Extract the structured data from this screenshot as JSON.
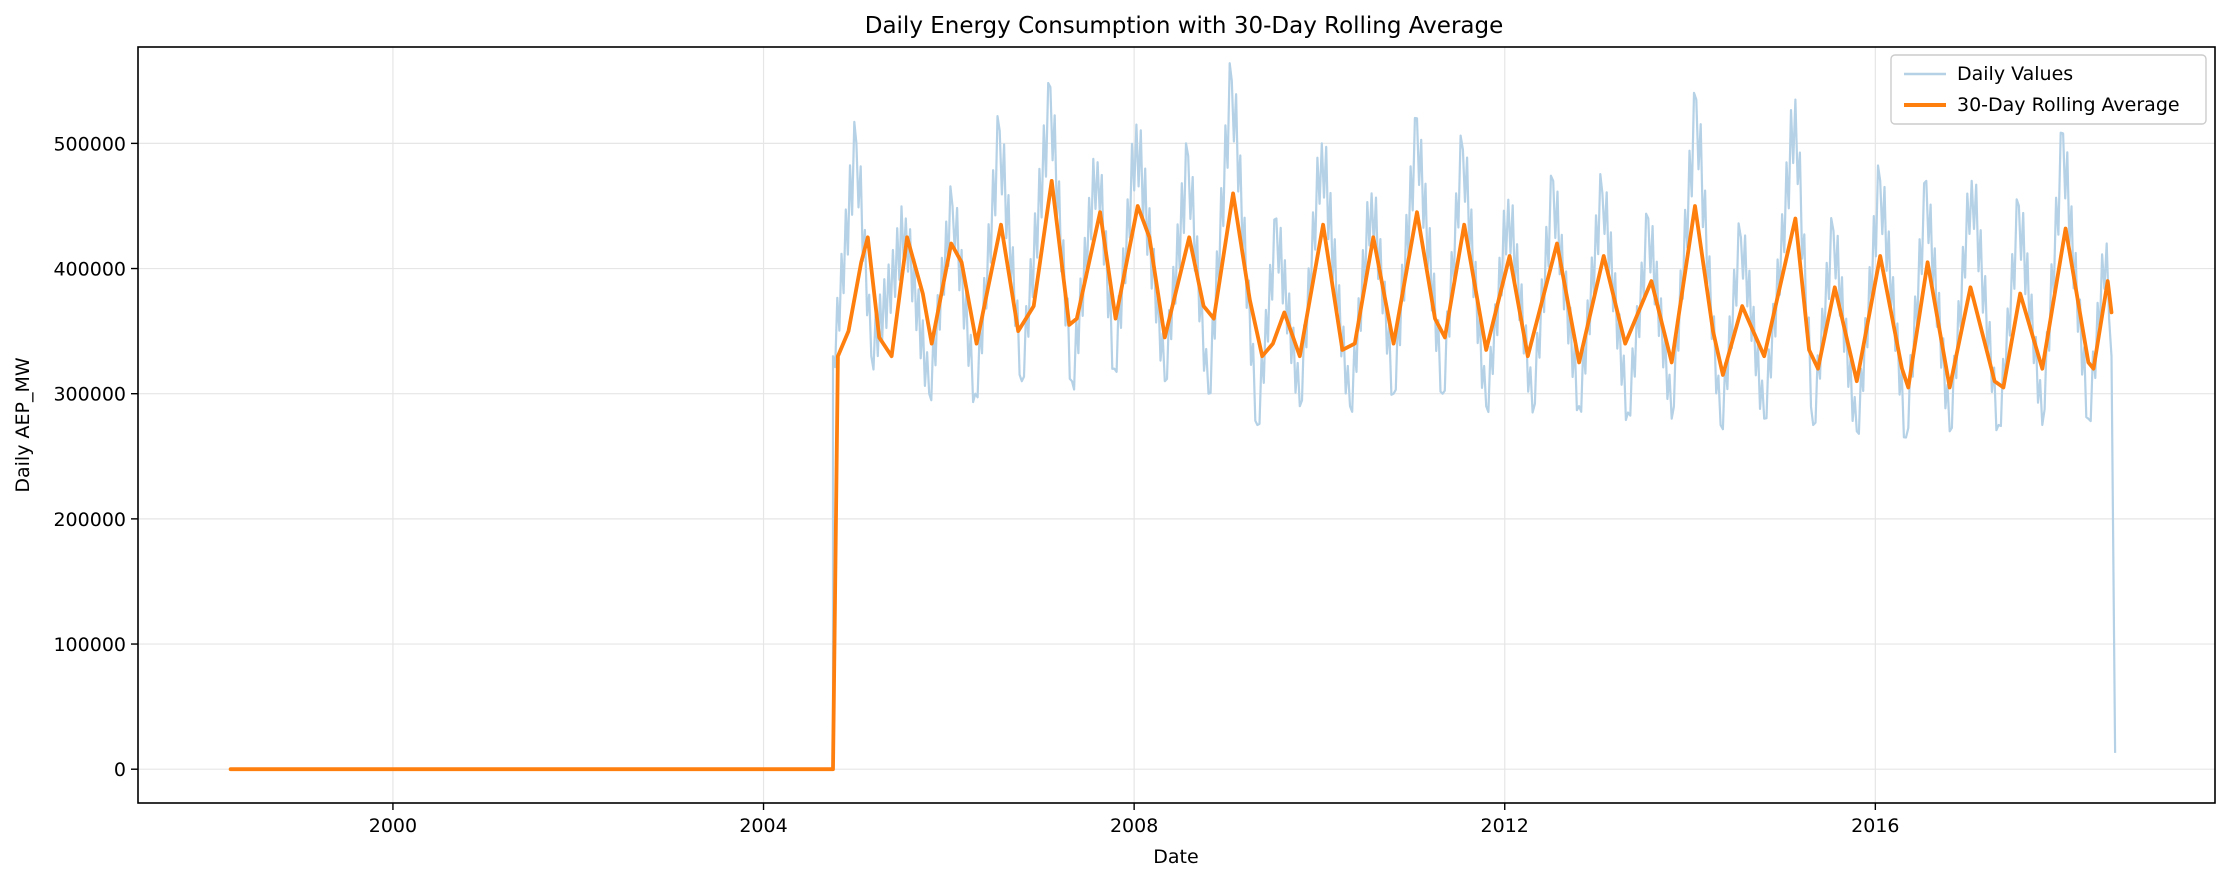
{
  "chart_data": {
    "type": "line",
    "title": "Daily Energy Consumption with 30-Day Rolling Average",
    "xlabel": "Date",
    "ylabel": "Daily AEP_MW",
    "x_ticks": [
      "2000",
      "2004",
      "2008",
      "2012",
      "2016"
    ],
    "y_ticks": [
      "0",
      "100000",
      "200000",
      "300000",
      "400000",
      "500000"
    ],
    "xlim": [
      "1997-04-01",
      "2019-09-01"
    ],
    "ylim": [
      -27000,
      577000
    ],
    "grid": true,
    "legend_position": "top-right",
    "series": [
      {
        "name": "Daily Values",
        "color": "#b4d1e6",
        "points": [
          [
            "1998-04-01",
            0
          ],
          [
            "2004-10-01",
            0
          ],
          [
            "2004-10-01",
            330000
          ],
          [
            "2005-01-01",
            500000
          ],
          [
            "2005-03-01",
            330000
          ],
          [
            "2005-07-15",
            440000
          ],
          [
            "2005-10-15",
            300000
          ],
          [
            "2006-01-15",
            450000
          ],
          [
            "2006-04-15",
            300000
          ],
          [
            "2006-07-20",
            510000
          ],
          [
            "2006-10-15",
            310000
          ],
          [
            "2007-02-05",
            545000
          ],
          [
            "2007-05-01",
            310000
          ],
          [
            "2007-08-10",
            485000
          ],
          [
            "2007-10-15",
            320000
          ],
          [
            "2008-01-10",
            515000
          ],
          [
            "2008-05-01",
            310000
          ],
          [
            "2008-08-01",
            490000
          ],
          [
            "2008-10-20",
            300000
          ],
          [
            "2009-01-20",
            550000
          ],
          [
            "2009-05-01",
            275000
          ],
          [
            "2009-07-15",
            440000
          ],
          [
            "2009-10-15",
            290000
          ],
          [
            "2010-01-10",
            500000
          ],
          [
            "2010-05-01",
            290000
          ],
          [
            "2010-07-25",
            460000
          ],
          [
            "2010-10-20",
            300000
          ],
          [
            "2011-01-20",
            520000
          ],
          [
            "2011-05-01",
            300000
          ],
          [
            "2011-07-20",
            495000
          ],
          [
            "2011-10-20",
            290000
          ],
          [
            "2012-01-15",
            455000
          ],
          [
            "2012-04-20",
            285000
          ],
          [
            "2012-07-10",
            470000
          ],
          [
            "2012-10-20",
            290000
          ],
          [
            "2013-01-20",
            460000
          ],
          [
            "2013-05-01",
            285000
          ],
          [
            "2013-07-20",
            440000
          ],
          [
            "2013-10-20",
            280000
          ],
          [
            "2014-01-25",
            535000
          ],
          [
            "2014-05-01",
            275000
          ],
          [
            "2014-07-20",
            425000
          ],
          [
            "2014-10-20",
            280000
          ],
          [
            "2015-02-20",
            535000
          ],
          [
            "2015-05-01",
            275000
          ],
          [
            "2015-07-20",
            430000
          ],
          [
            "2015-10-20",
            270000
          ],
          [
            "2016-01-20",
            470000
          ],
          [
            "2016-05-01",
            265000
          ],
          [
            "2016-07-20",
            470000
          ],
          [
            "2016-10-20",
            270000
          ],
          [
            "2017-01-15",
            470000
          ],
          [
            "2017-05-01",
            275000
          ],
          [
            "2017-07-20",
            450000
          ],
          [
            "2017-10-20",
            275000
          ],
          [
            "2018-01-10",
            508000
          ],
          [
            "2018-04-20",
            280000
          ],
          [
            "2018-07-01",
            420000
          ],
          [
            "2018-07-20",
            330000
          ],
          [
            "2018-08-03",
            13000
          ]
        ]
      },
      {
        "name": "30-Day Rolling Average",
        "color": "#ff7f0e",
        "points": [
          [
            "1998-04-01",
            0
          ],
          [
            "2004-10-01",
            0
          ],
          [
            "2004-10-20",
            330000
          ],
          [
            "2004-12-01",
            350000
          ],
          [
            "2005-01-20",
            405000
          ],
          [
            "2005-02-15",
            425000
          ],
          [
            "2005-04-01",
            345000
          ],
          [
            "2005-05-20",
            330000
          ],
          [
            "2005-07-20",
            425000
          ],
          [
            "2005-09-20",
            380000
          ],
          [
            "2005-10-25",
            340000
          ],
          [
            "2006-01-10",
            420000
          ],
          [
            "2006-02-20",
            405000
          ],
          [
            "2006-04-20",
            340000
          ],
          [
            "2006-07-25",
            435000
          ],
          [
            "2006-10-01",
            350000
          ],
          [
            "2006-12-01",
            370000
          ],
          [
            "2007-02-10",
            470000
          ],
          [
            "2007-04-20",
            355000
          ],
          [
            "2007-05-20",
            360000
          ],
          [
            "2007-08-20",
            445000
          ],
          [
            "2007-10-20",
            360000
          ],
          [
            "2008-01-15",
            450000
          ],
          [
            "2008-03-01",
            425000
          ],
          [
            "2008-05-01",
            345000
          ],
          [
            "2008-08-05",
            425000
          ],
          [
            "2008-10-01",
            370000
          ],
          [
            "2008-11-10",
            360000
          ],
          [
            "2009-01-25",
            460000
          ],
          [
            "2009-04-01",
            375000
          ],
          [
            "2009-05-20",
            330000
          ],
          [
            "2009-07-01",
            340000
          ],
          [
            "2009-08-15",
            365000
          ],
          [
            "2009-10-15",
            330000
          ],
          [
            "2010-01-15",
            435000
          ],
          [
            "2010-04-01",
            335000
          ],
          [
            "2010-05-20",
            340000
          ],
          [
            "2010-08-01",
            425000
          ],
          [
            "2010-10-20",
            340000
          ],
          [
            "2011-01-20",
            445000
          ],
          [
            "2011-04-01",
            360000
          ],
          [
            "2011-05-10",
            345000
          ],
          [
            "2011-07-25",
            435000
          ],
          [
            "2011-10-20",
            335000
          ],
          [
            "2012-01-20",
            410000
          ],
          [
            "2012-04-01",
            330000
          ],
          [
            "2012-07-25",
            420000
          ],
          [
            "2012-10-20",
            325000
          ],
          [
            "2013-01-25",
            410000
          ],
          [
            "2013-04-20",
            340000
          ],
          [
            "2013-08-01",
            390000
          ],
          [
            "2013-10-20",
            325000
          ],
          [
            "2014-01-20",
            450000
          ],
          [
            "2014-04-01",
            350000
          ],
          [
            "2014-05-10",
            315000
          ],
          [
            "2014-07-25",
            370000
          ],
          [
            "2014-10-20",
            330000
          ],
          [
            "2015-02-20",
            440000
          ],
          [
            "2015-04-15",
            335000
          ],
          [
            "2015-05-20",
            320000
          ],
          [
            "2015-07-25",
            385000
          ],
          [
            "2015-10-20",
            310000
          ],
          [
            "2016-01-20",
            410000
          ],
          [
            "2016-04-15",
            320000
          ],
          [
            "2016-05-10",
            305000
          ],
          [
            "2016-07-25",
            405000
          ],
          [
            "2016-10-20",
            305000
          ],
          [
            "2017-01-10",
            385000
          ],
          [
            "2017-04-15",
            310000
          ],
          [
            "2017-05-20",
            305000
          ],
          [
            "2017-07-25",
            380000
          ],
          [
            "2017-10-20",
            320000
          ],
          [
            "2018-01-20",
            432000
          ],
          [
            "2018-04-20",
            325000
          ],
          [
            "2018-05-10",
            320000
          ],
          [
            "2018-07-05",
            390000
          ],
          [
            "2018-07-20",
            365000
          ]
        ]
      }
    ]
  }
}
